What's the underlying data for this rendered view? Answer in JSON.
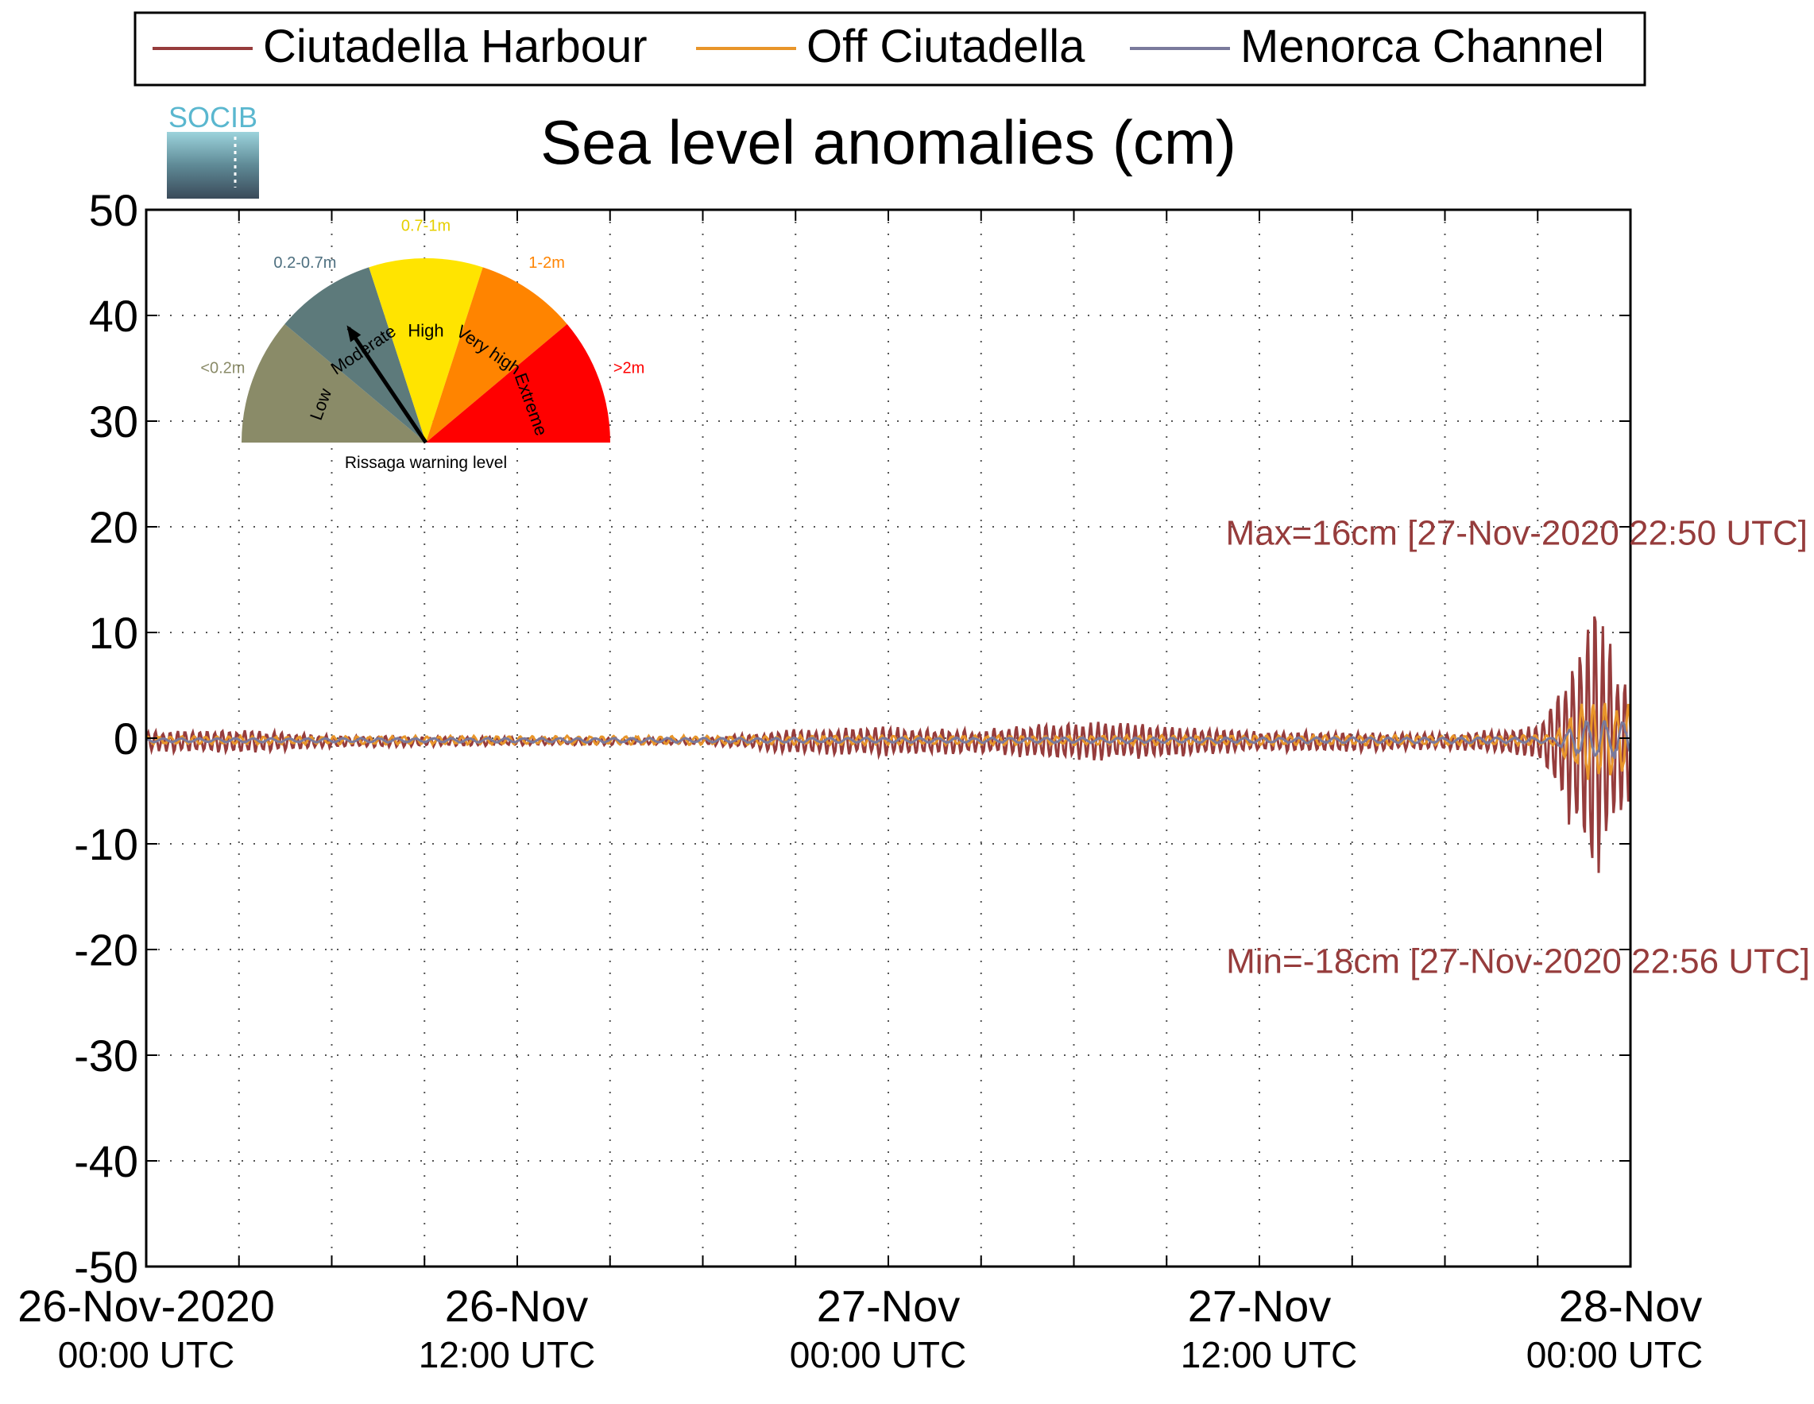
{
  "chart_data": {
    "type": "line",
    "title": "Sea level anomalies (cm)",
    "logo_text": "SOCIB",
    "xlabel": "",
    "ylabel": "",
    "ylim": [
      -50,
      50
    ],
    "y_ticks": [
      "50",
      "40",
      "30",
      "20",
      "10",
      "0",
      "-10",
      "-20",
      "-30",
      "-40",
      "-50"
    ],
    "x_range": [
      "26-Nov-2020 00:00 UTC",
      "28-Nov-2020 00:00 UTC"
    ],
    "x_ticks": [
      {
        "date": "26-Nov-2020",
        "time": "00:00 UTC"
      },
      {
        "date": "26-Nov",
        "time": "12:00 UTC"
      },
      {
        "date": "27-Nov",
        "time": "00:00 UTC"
      },
      {
        "date": "27-Nov",
        "time": "12:00 UTC"
      },
      {
        "date": "28-Nov",
        "time": "00:00 UTC"
      }
    ],
    "grid": true,
    "legend": {
      "placement": "top",
      "entries": [
        "Ciutadella Harbour",
        "Off Ciutadella",
        "Menorca Channel"
      ]
    },
    "series": [
      {
        "name": "Ciutadella Harbour",
        "color": "#963c3c",
        "amplitude_cm": [
          {
            "t": "26-Nov-2020 00:00",
            "a": 1.0
          },
          {
            "t": "26-Nov-2020 03:00",
            "a": 1.2
          },
          {
            "t": "26-Nov-2020 06:00",
            "a": 0.6
          },
          {
            "t": "26-Nov-2020 12:00",
            "a": 0.4
          },
          {
            "t": "26-Nov-2020 18:00",
            "a": 0.3
          },
          {
            "t": "26-Nov-2020 21:00",
            "a": 1.2
          },
          {
            "t": "27-Nov-2020 00:00",
            "a": 1.5
          },
          {
            "t": "27-Nov-2020 03:00",
            "a": 1.2
          },
          {
            "t": "27-Nov-2020 06:00",
            "a": 2.0
          },
          {
            "t": "27-Nov-2020 09:00",
            "a": 1.6
          },
          {
            "t": "27-Nov-2020 12:00",
            "a": 1.0
          },
          {
            "t": "27-Nov-2020 15:00",
            "a": 1.0
          },
          {
            "t": "27-Nov-2020 18:00",
            "a": 0.8
          },
          {
            "t": "27-Nov-2020 21:00",
            "a": 1.5
          },
          {
            "t": "27-Nov-2020 22:00",
            "a": 8.0
          },
          {
            "t": "27-Nov-2020 22:50",
            "a": 16.0
          },
          {
            "t": "27-Nov-2020 23:20",
            "a": 10.0
          },
          {
            "t": "28-Nov-2020 00:00",
            "a": 6.0
          }
        ]
      },
      {
        "name": "Off Ciutadella",
        "color": "#e8952a",
        "amplitude_cm": [
          {
            "t": "26-Nov-2020 00:00",
            "a": 0.4
          },
          {
            "t": "27-Nov-2020 21:30",
            "a": 0.5
          },
          {
            "t": "27-Nov-2020 22:30",
            "a": 4.0
          },
          {
            "t": "28-Nov-2020 00:00",
            "a": 3.5
          }
        ]
      },
      {
        "name": "Menorca Channel",
        "color": "#7a7a9c",
        "amplitude_cm": [
          {
            "t": "26-Nov-2020 00:00",
            "a": 0.2
          },
          {
            "t": "27-Nov-2020 21:30",
            "a": 0.3
          },
          {
            "t": "27-Nov-2020 22:30",
            "a": 2.0
          },
          {
            "t": "28-Nov-2020 00:00",
            "a": 1.8
          }
        ]
      }
    ],
    "annotations": [
      {
        "text": "Max=16cm [27-Nov-2020 22:50 UTC]",
        "y": 19.5
      },
      {
        "text": "Min=-18cm [27-Nov-2020 22:56 UTC]",
        "y": -21
      }
    ]
  },
  "gauge": {
    "title": "Rissaga warning level",
    "current_level": "Moderate",
    "levels": [
      {
        "name": "Low",
        "range": "<0.2m",
        "color": "#8a8b68",
        "range_color": "#8a8b68"
      },
      {
        "name": "Moderate",
        "range": "0.2-0.7m",
        "color": "#5d7a7b",
        "range_color": "#4d6f7f"
      },
      {
        "name": "High",
        "range": "0.7-1m",
        "color": "#ffe400",
        "range_color": "#e6cf00"
      },
      {
        "name": "Very high",
        "range": "1-2m",
        "color": "#ff8400",
        "range_color": "#ff8400"
      },
      {
        "name": "Extreme",
        "range": ">2m",
        "color": "#ff0000",
        "range_color": "#ff0000"
      }
    ]
  }
}
